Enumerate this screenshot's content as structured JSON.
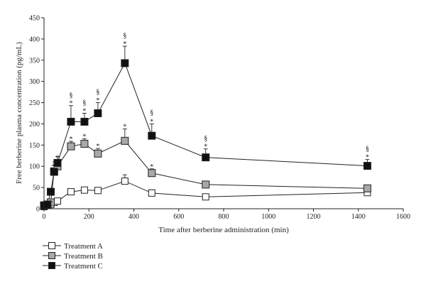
{
  "chart_data": {
    "type": "line",
    "xlabel": "Time after berberine administration (min)",
    "ylabel": "Free berberine plasma concentration (pg/mL)",
    "xlim": [
      0,
      1600
    ],
    "ylim": [
      0,
      450
    ],
    "xticks": [
      "0",
      "200",
      "400",
      "600",
      "800",
      "1000",
      "1200",
      "1400",
      "1600"
    ],
    "yticks": [
      "0",
      "50",
      "100",
      "150",
      "200",
      "250",
      "300",
      "350",
      "400",
      "450"
    ],
    "grid": false,
    "legend_position": "bottom-left",
    "x": [
      0,
      15,
      30,
      45,
      60,
      120,
      180,
      240,
      360,
      480,
      720,
      1440
    ],
    "series": [
      {
        "name": "Treatment A",
        "marker": "open-square",
        "fill": "#ffffff",
        "values": [
          5,
          8,
          10,
          15,
          18,
          40,
          44,
          43,
          65,
          37,
          28,
          38
        ],
        "errors": [
          0,
          0,
          0,
          0,
          0,
          0,
          0,
          0,
          15,
          0,
          0,
          0
        ]
      },
      {
        "name": "Treatment B",
        "marker": "gray-square",
        "fill": "#a8a8a8",
        "values": [
          7,
          10,
          15,
          88,
          100,
          147,
          153,
          130,
          160,
          84,
          57,
          48
        ],
        "errors": [
          0,
          0,
          0,
          15,
          15,
          12,
          12,
          12,
          28,
          10,
          0,
          0
        ]
      },
      {
        "name": "Treatment C",
        "marker": "black-square",
        "fill": "#111111",
        "values": [
          8,
          10,
          40,
          87,
          108,
          205,
          205,
          225,
          343,
          172,
          121,
          101
        ],
        "errors": [
          0,
          0,
          0,
          15,
          15,
          38,
          20,
          25,
          40,
          28,
          20,
          15
        ]
      }
    ],
    "annotations": {
      "star_A": {
        "x": [
          15
        ],
        "y": [
          8
        ],
        "text": "*"
      },
      "star_B": {
        "x": [
          60,
          120,
          180,
          240,
          360,
          480
        ],
        "y": [
          115,
          159,
          165,
          142,
          188,
          94
        ],
        "text": "*"
      },
      "star_C": {
        "x": [
          45,
          120,
          180,
          240,
          360,
          480,
          720,
          1440
        ],
        "y": [
          102,
          243,
          225,
          250,
          383,
          200,
          141,
          116
        ],
        "text": "*"
      },
      "section": {
        "x": [
          120,
          180,
          240,
          360,
          480,
          720,
          1440
        ],
        "y": [
          263,
          245,
          270,
          403,
          222,
          161,
          136
        ],
        "text": "§"
      }
    }
  }
}
